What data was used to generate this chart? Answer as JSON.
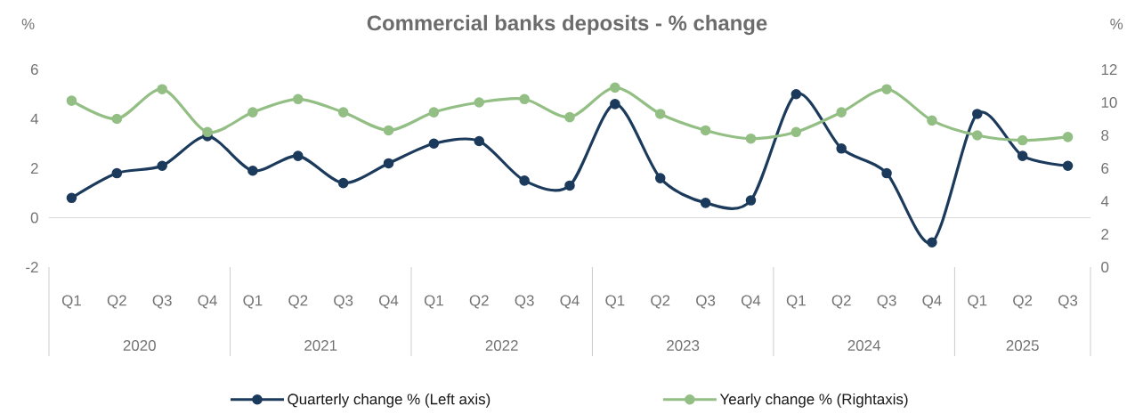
{
  "chart_data": {
    "type": "line",
    "title": "Commercial banks deposits - % change",
    "ylabel": "%",
    "y2label": "%",
    "categories": [
      "Q1",
      "Q2",
      "Q3",
      "Q4",
      "Q1",
      "Q2",
      "Q3",
      "Q4",
      "Q1",
      "Q2",
      "Q3",
      "Q4",
      "Q1",
      "Q2",
      "Q3",
      "Q4",
      "Q1",
      "Q2",
      "Q3",
      "Q4",
      "Q1",
      "Q2",
      "Q3"
    ],
    "annotations": [
      "2020",
      "2021",
      "2022",
      "2023",
      "2024",
      "2025"
    ],
    "series": [
      {
        "name": "Quarterly change % (Left axis)",
        "color": "#1b3a5c",
        "axis": "y",
        "values": [
          0.8,
          1.8,
          2.1,
          3.3,
          1.9,
          2.5,
          1.4,
          2.2,
          3.0,
          3.1,
          1.5,
          1.3,
          4.6,
          1.6,
          0.6,
          0.7,
          5.0,
          2.8,
          1.8,
          -1.0,
          4.2,
          2.5,
          2.1
        ]
      },
      {
        "name": "Yearly change % (Rightaxis)",
        "color": "#93bf85",
        "axis": "y2",
        "values": [
          10.1,
          9.0,
          10.8,
          8.2,
          9.4,
          10.2,
          9.4,
          8.3,
          9.4,
          10.0,
          10.2,
          9.1,
          10.9,
          9.3,
          8.3,
          7.8,
          8.2,
          9.4,
          10.8,
          8.9,
          8.0,
          7.7,
          7.9
        ]
      }
    ],
    "ylim": [
      -2,
      6
    ],
    "yticks": [
      -2,
      0,
      2,
      4,
      6
    ],
    "y2lim": [
      0,
      12
    ],
    "y2ticks": [
      0,
      2,
      4,
      6,
      8,
      10,
      12
    ],
    "ref_lines": [
      {
        "axis": "y",
        "value": 0,
        "color": "#d9d9d9"
      }
    ],
    "marker": "circle",
    "legend": "bottom"
  }
}
